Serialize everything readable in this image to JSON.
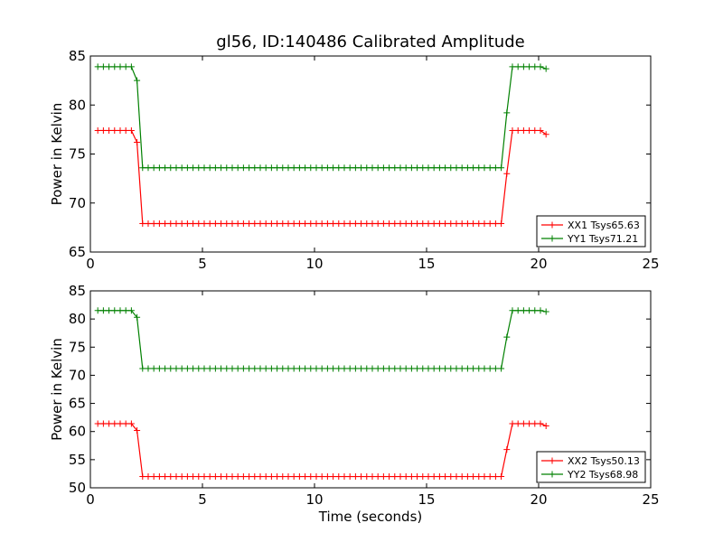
{
  "chart_data": {
    "title": "gl56, ID:140486 Calibrated Amplitude",
    "xlabel": "Time (seconds)",
    "panels": [
      {
        "type": "line",
        "ylabel": "Power in Kelvin",
        "xlim": [
          0,
          25
        ],
        "ylim": [
          65,
          85
        ],
        "x_ticks": [
          "0",
          "5",
          "10",
          "15",
          "20",
          "25"
        ],
        "y_ticks": [
          "65",
          "70",
          "75",
          "80",
          "85"
        ],
        "legend_position": "lower-right",
        "series": [
          {
            "name": "XX1 Tsys65.63",
            "color": "#ff0000",
            "low": 67.9,
            "high": 77.4,
            "start": 77.4,
            "end": 77.0,
            "step_down_value": 76.2,
            "step_up_value": 73.0
          },
          {
            "name": "YY1 Tsys71.21",
            "color": "#008000",
            "low": 73.6,
            "high": 83.9,
            "start": 83.9,
            "end": 83.7,
            "step_down_value": 82.5,
            "step_up_value": 79.2
          }
        ]
      },
      {
        "type": "line",
        "ylabel": "Power in Kelvin",
        "xlim": [
          0,
          25
        ],
        "ylim": [
          50,
          85
        ],
        "x_ticks": [
          "0",
          "5",
          "10",
          "15",
          "20",
          "25"
        ],
        "y_ticks": [
          "50",
          "55",
          "60",
          "65",
          "70",
          "75",
          "80",
          "85"
        ],
        "legend_position": "lower-right",
        "series": [
          {
            "name": "XX2 Tsys50.13",
            "color": "#ff0000",
            "low": 52.0,
            "high": 61.4,
            "start": 61.4,
            "end": 61.0,
            "step_down_value": 60.2,
            "step_up_value": 56.8
          },
          {
            "name": "YY2 Tsys68.98",
            "color": "#008000",
            "low": 71.2,
            "high": 81.5,
            "start": 81.5,
            "end": 81.3,
            "step_down_value": 80.3,
            "step_up_value": 76.8
          }
        ]
      }
    ],
    "sampling": {
      "x_start": 0.33,
      "x_step": 0.25,
      "n_points": 81,
      "step_down_index": 7,
      "low_start_index": 8,
      "low_end_index": 72,
      "step_up_index": 73
    }
  }
}
